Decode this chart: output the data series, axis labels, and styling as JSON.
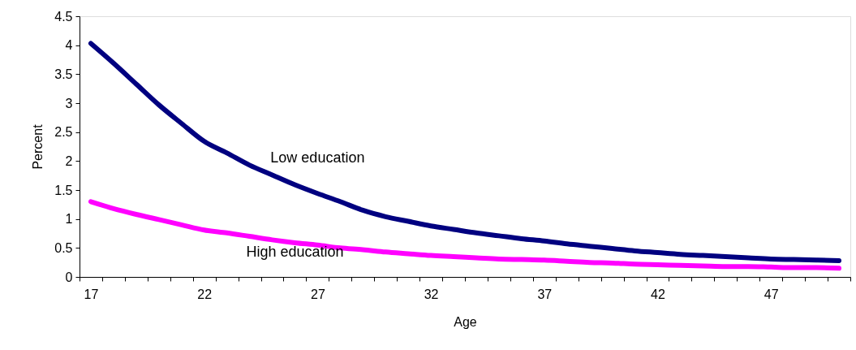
{
  "chart_data": {
    "type": "line",
    "xlabel": "Age",
    "ylabel": "Percent",
    "categories": [
      "17",
      null,
      null,
      null,
      null,
      "22",
      null,
      null,
      null,
      null,
      "27",
      null,
      null,
      null,
      null,
      "32",
      null,
      null,
      null,
      null,
      "37",
      null,
      null,
      null,
      null,
      "42",
      null,
      null,
      null,
      null,
      "47",
      null,
      null,
      null
    ],
    "series": [
      {
        "name": "Low education",
        "color": "#000080",
        "values": [
          4.03,
          3.69,
          3.33,
          2.97,
          2.65,
          2.34,
          2.14,
          1.93,
          1.76,
          1.59,
          1.44,
          1.3,
          1.15,
          1.04,
          0.96,
          0.88,
          0.82,
          0.76,
          0.71,
          0.66,
          0.62,
          0.57,
          0.53,
          0.49,
          0.45,
          0.42,
          0.39,
          0.37,
          0.35,
          0.33,
          0.31,
          0.3,
          0.29,
          0.28
        ]
      },
      {
        "name": "High education",
        "color": "#ff00ff",
        "values": [
          1.3,
          1.18,
          1.08,
          0.99,
          0.9,
          0.81,
          0.76,
          0.7,
          0.64,
          0.59,
          0.55,
          0.5,
          0.47,
          0.43,
          0.4,
          0.37,
          0.35,
          0.33,
          0.31,
          0.3,
          0.29,
          0.27,
          0.25,
          0.24,
          0.22,
          0.21,
          0.2,
          0.19,
          0.18,
          0.18,
          0.17,
          0.16,
          0.16,
          0.15
        ]
      }
    ],
    "ylim": [
      0,
      4.5
    ],
    "yticks": [
      0,
      0.5,
      1,
      1.5,
      2,
      2.5,
      3,
      3.5,
      4,
      4.5
    ],
    "grid": false,
    "legend": false,
    "marker": "none",
    "line_style": "solid"
  }
}
